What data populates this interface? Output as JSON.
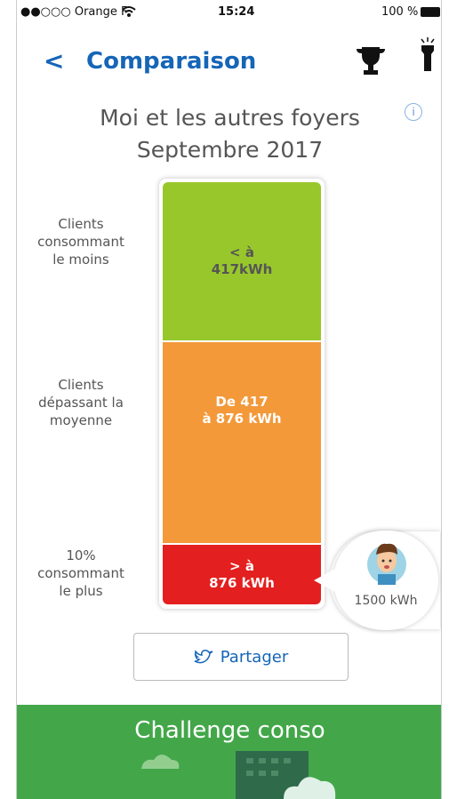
{
  "status_bar": {
    "carrier": "●●○○○ Orange F",
    "time": "15:24",
    "battery": "100 %"
  },
  "header": {
    "title": "Comparaison"
  },
  "comparison": {
    "title": "Moi et les autres foyers",
    "subtitle": "Septembre 2017",
    "segments": [
      {
        "label_lines": [
          "Clients",
          "consommant",
          "le moins"
        ],
        "value_lines": [
          "< à",
          "417kWh"
        ]
      },
      {
        "label_lines": [
          "Clients",
          "dépassant la",
          "moyenne"
        ],
        "value_lines": [
          "De 417",
          "à 876 kWh"
        ]
      },
      {
        "label_lines": [
          "10%",
          "consommant",
          "le plus"
        ],
        "value_lines": [
          "> à",
          "876 kWh"
        ]
      }
    ],
    "my_consumption": "1500 kWh"
  },
  "share_button": "Partager",
  "footer": {
    "title": "Challenge conso"
  }
}
